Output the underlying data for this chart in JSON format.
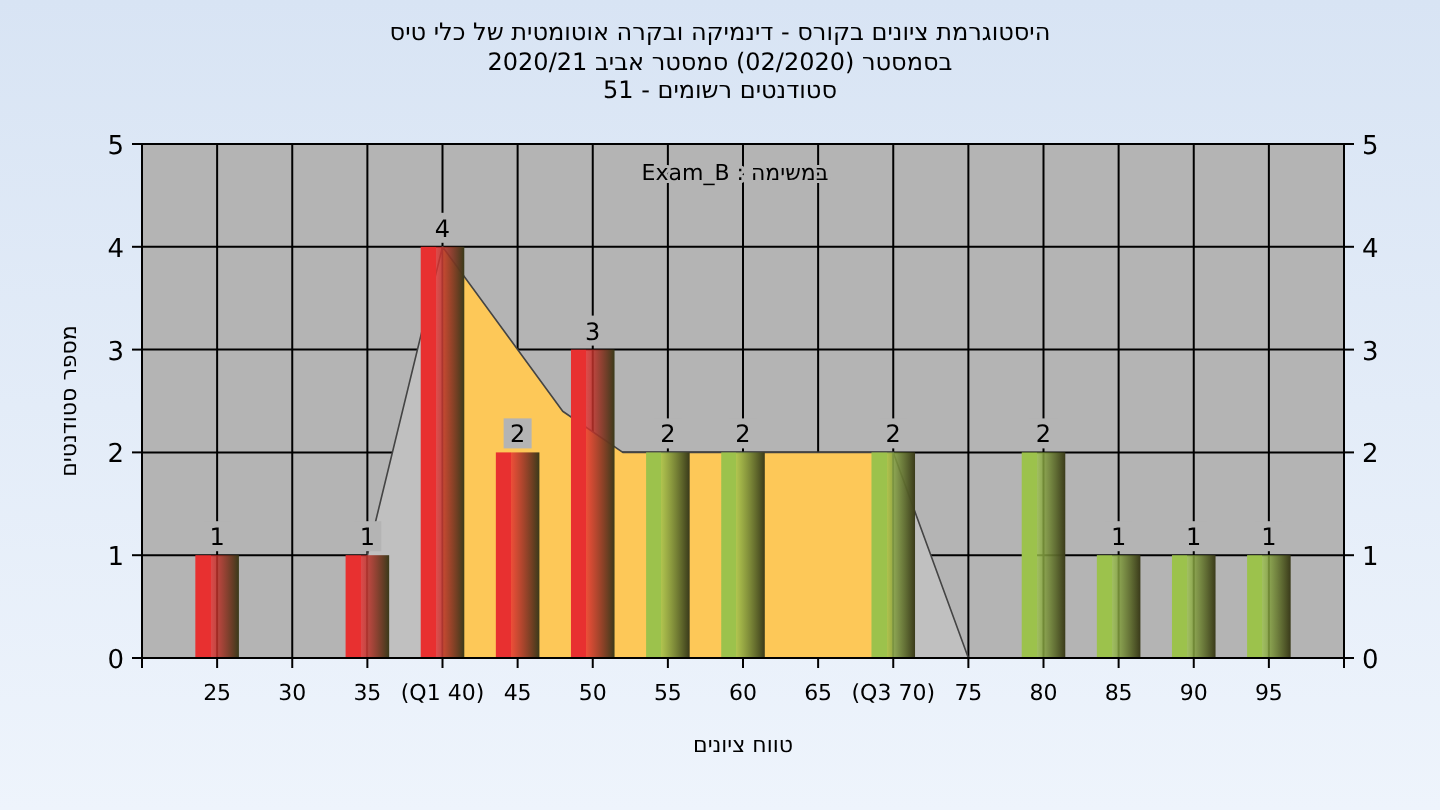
{
  "chart_data": {
    "type": "bar",
    "title": "היסטוגרמת ציונים בקורס - דינמיקה ובקרה אוטומטית של כלי טיס",
    "subtitle": [
      "בסמסטר (02/2020) סמסטר אביב 2020/21",
      "סטודנטים רשומים - 51"
    ],
    "xlabel": "טווח ציונים",
    "ylabel": "מספר סטודנטים",
    "annotations": [
      "במשימה : Exam_B"
    ],
    "xlim": [
      20,
      100
    ],
    "xticks": [
      {
        "value": 20,
        "label": null
      },
      25,
      30,
      35,
      {
        "value": 40,
        "label": "(Q1 40)"
      },
      45,
      50,
      55,
      60,
      65,
      {
        "value": 70,
        "label": "(Q3 70)"
      },
      75,
      80,
      85,
      90,
      95,
      {
        "value": 100,
        "label": null
      }
    ],
    "ylim": [
      0,
      5
    ],
    "yticks": [
      0,
      1,
      2,
      3,
      4,
      5
    ],
    "y2lim": [
      0,
      5
    ],
    "y2ticks": [
      0,
      1,
      2,
      3,
      4,
      5
    ],
    "grid": true,
    "series": [
      {
        "type": "area",
        "color": "#c0c0c0",
        "x": [
          35,
          40
        ],
        "values": [
          1,
          4
        ]
      },
      {
        "type": "area",
        "color": "#fdc858",
        "x": [
          40,
          48,
          52,
          70
        ],
        "values": [
          4,
          2.4,
          2,
          2
        ]
      },
      {
        "type": "area",
        "color": "#c0c0c0",
        "x": [
          70,
          75
        ],
        "values": [
          2,
          0
        ]
      },
      {
        "type": "bar",
        "x": [
          25,
          30,
          35,
          40,
          45,
          50,
          55,
          60,
          65,
          70,
          75,
          80,
          85,
          90,
          95
        ],
        "values": [
          1,
          0,
          1,
          4,
          2,
          3,
          2,
          2,
          0,
          2,
          0,
          2,
          1,
          1,
          1
        ],
        "colors": [
          "#e83030",
          "#e83030",
          "#e83030",
          "#e83030",
          "#e83030",
          "#e83030",
          "#9cc24c",
          "#9cc24c",
          "#9cc24c",
          "#9cc24c",
          "#9cc24c",
          "#9cc24c",
          "#9cc24c",
          "#9cc24c",
          "#9cc24c"
        ],
        "value_labels": [
          "1",
          null,
          "1",
          "4",
          "2",
          "3",
          "2",
          "2",
          null,
          "2",
          null,
          "2",
          "1",
          "1",
          "1"
        ]
      }
    ]
  }
}
